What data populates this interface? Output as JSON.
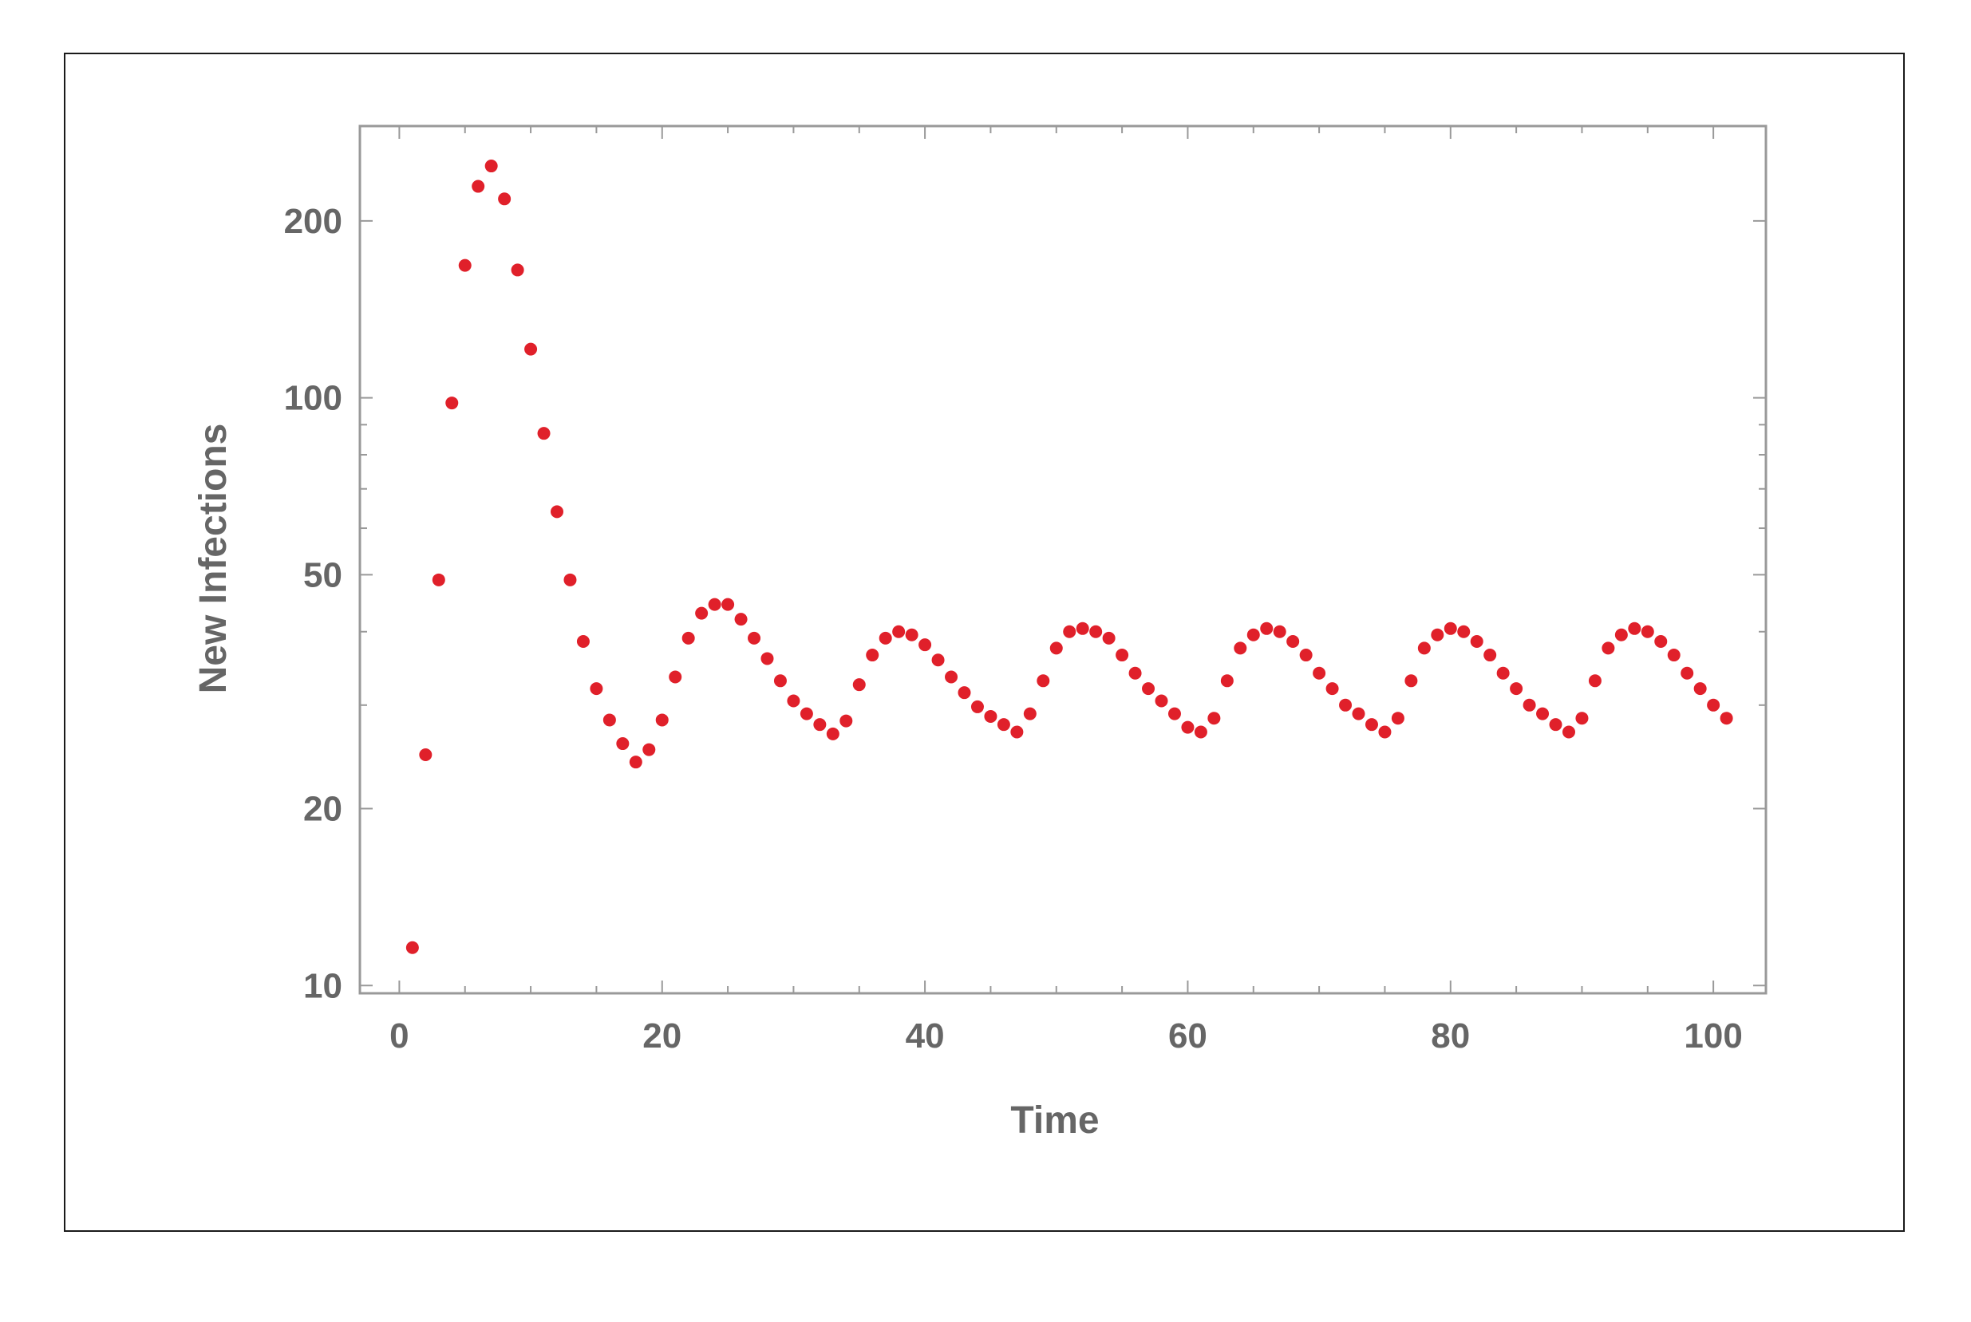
{
  "chart_data": {
    "type": "scatter",
    "title": "",
    "xlabel": "Time",
    "ylabel": "New Infections",
    "xlim": [
      -3,
      104
    ],
    "ylim": [
      9.7,
      290
    ],
    "yscale": "log",
    "grid": false,
    "legend": "none",
    "marker_color": "#e0202a",
    "axis_color": "#999999",
    "label_color": "#666666",
    "x_ticks": [
      0,
      20,
      40,
      60,
      80,
      100
    ],
    "x_tick_labels": [
      "0",
      "20",
      "40",
      "60",
      "80",
      "100"
    ],
    "y_ticks": [
      10,
      20,
      50,
      100,
      200
    ],
    "y_tick_labels": [
      "10",
      "20",
      "50",
      "100",
      "200"
    ],
    "series": [
      {
        "x": [
          1,
          2,
          3,
          4,
          5,
          6,
          7,
          8,
          9,
          10,
          11,
          12,
          13,
          14,
          15,
          16,
          17,
          18,
          19,
          20,
          21,
          22,
          23,
          24,
          25,
          26,
          27,
          28,
          29,
          30,
          31,
          32,
          33,
          34,
          35,
          36,
          37,
          38,
          39,
          40,
          41,
          42,
          43,
          44,
          45,
          46,
          47,
          48,
          49,
          50,
          51,
          52,
          53,
          54,
          55,
          56,
          57,
          58,
          59,
          60,
          61,
          62,
          63,
          64,
          65,
          66,
          67,
          68,
          69,
          70,
          71,
          72,
          73,
          74,
          75,
          76,
          77,
          78,
          79,
          80,
          81,
          82,
          83,
          84,
          85,
          86,
          87,
          88,
          89,
          90,
          91,
          92,
          93,
          94,
          95,
          96,
          97,
          98,
          99,
          100,
          101
        ],
        "y": [
          11.6,
          24.7,
          49,
          98,
          168,
          229,
          248,
          218,
          165,
          121,
          87,
          64,
          49,
          38.5,
          32,
          28.3,
          25.8,
          24,
          25.2,
          28.3,
          33.5,
          39,
          43,
          44.5,
          44.5,
          42,
          39,
          36,
          33,
          30.5,
          29,
          27.8,
          26.8,
          28.2,
          32.5,
          36.5,
          39,
          40,
          39.5,
          38,
          35.8,
          33.5,
          31.5,
          29.8,
          28.7,
          27.8,
          27,
          29,
          33,
          37.5,
          40,
          40.5,
          40,
          39,
          36.5,
          34,
          32,
          30.5,
          29,
          27.5,
          27,
          28.5,
          33,
          37.5,
          39.5,
          40.5,
          40,
          38.5,
          36.5,
          34,
          32,
          30,
          29,
          27.8,
          27,
          28.5,
          33,
          37.5,
          39.5,
          40.5,
          40,
          38.5,
          36.5,
          34,
          32,
          30,
          29,
          27.8,
          27,
          28.5,
          33,
          37.5,
          39.5,
          40.5,
          40,
          38.5,
          36.5,
          34,
          32,
          30,
          28.5
        ]
      }
    ]
  }
}
